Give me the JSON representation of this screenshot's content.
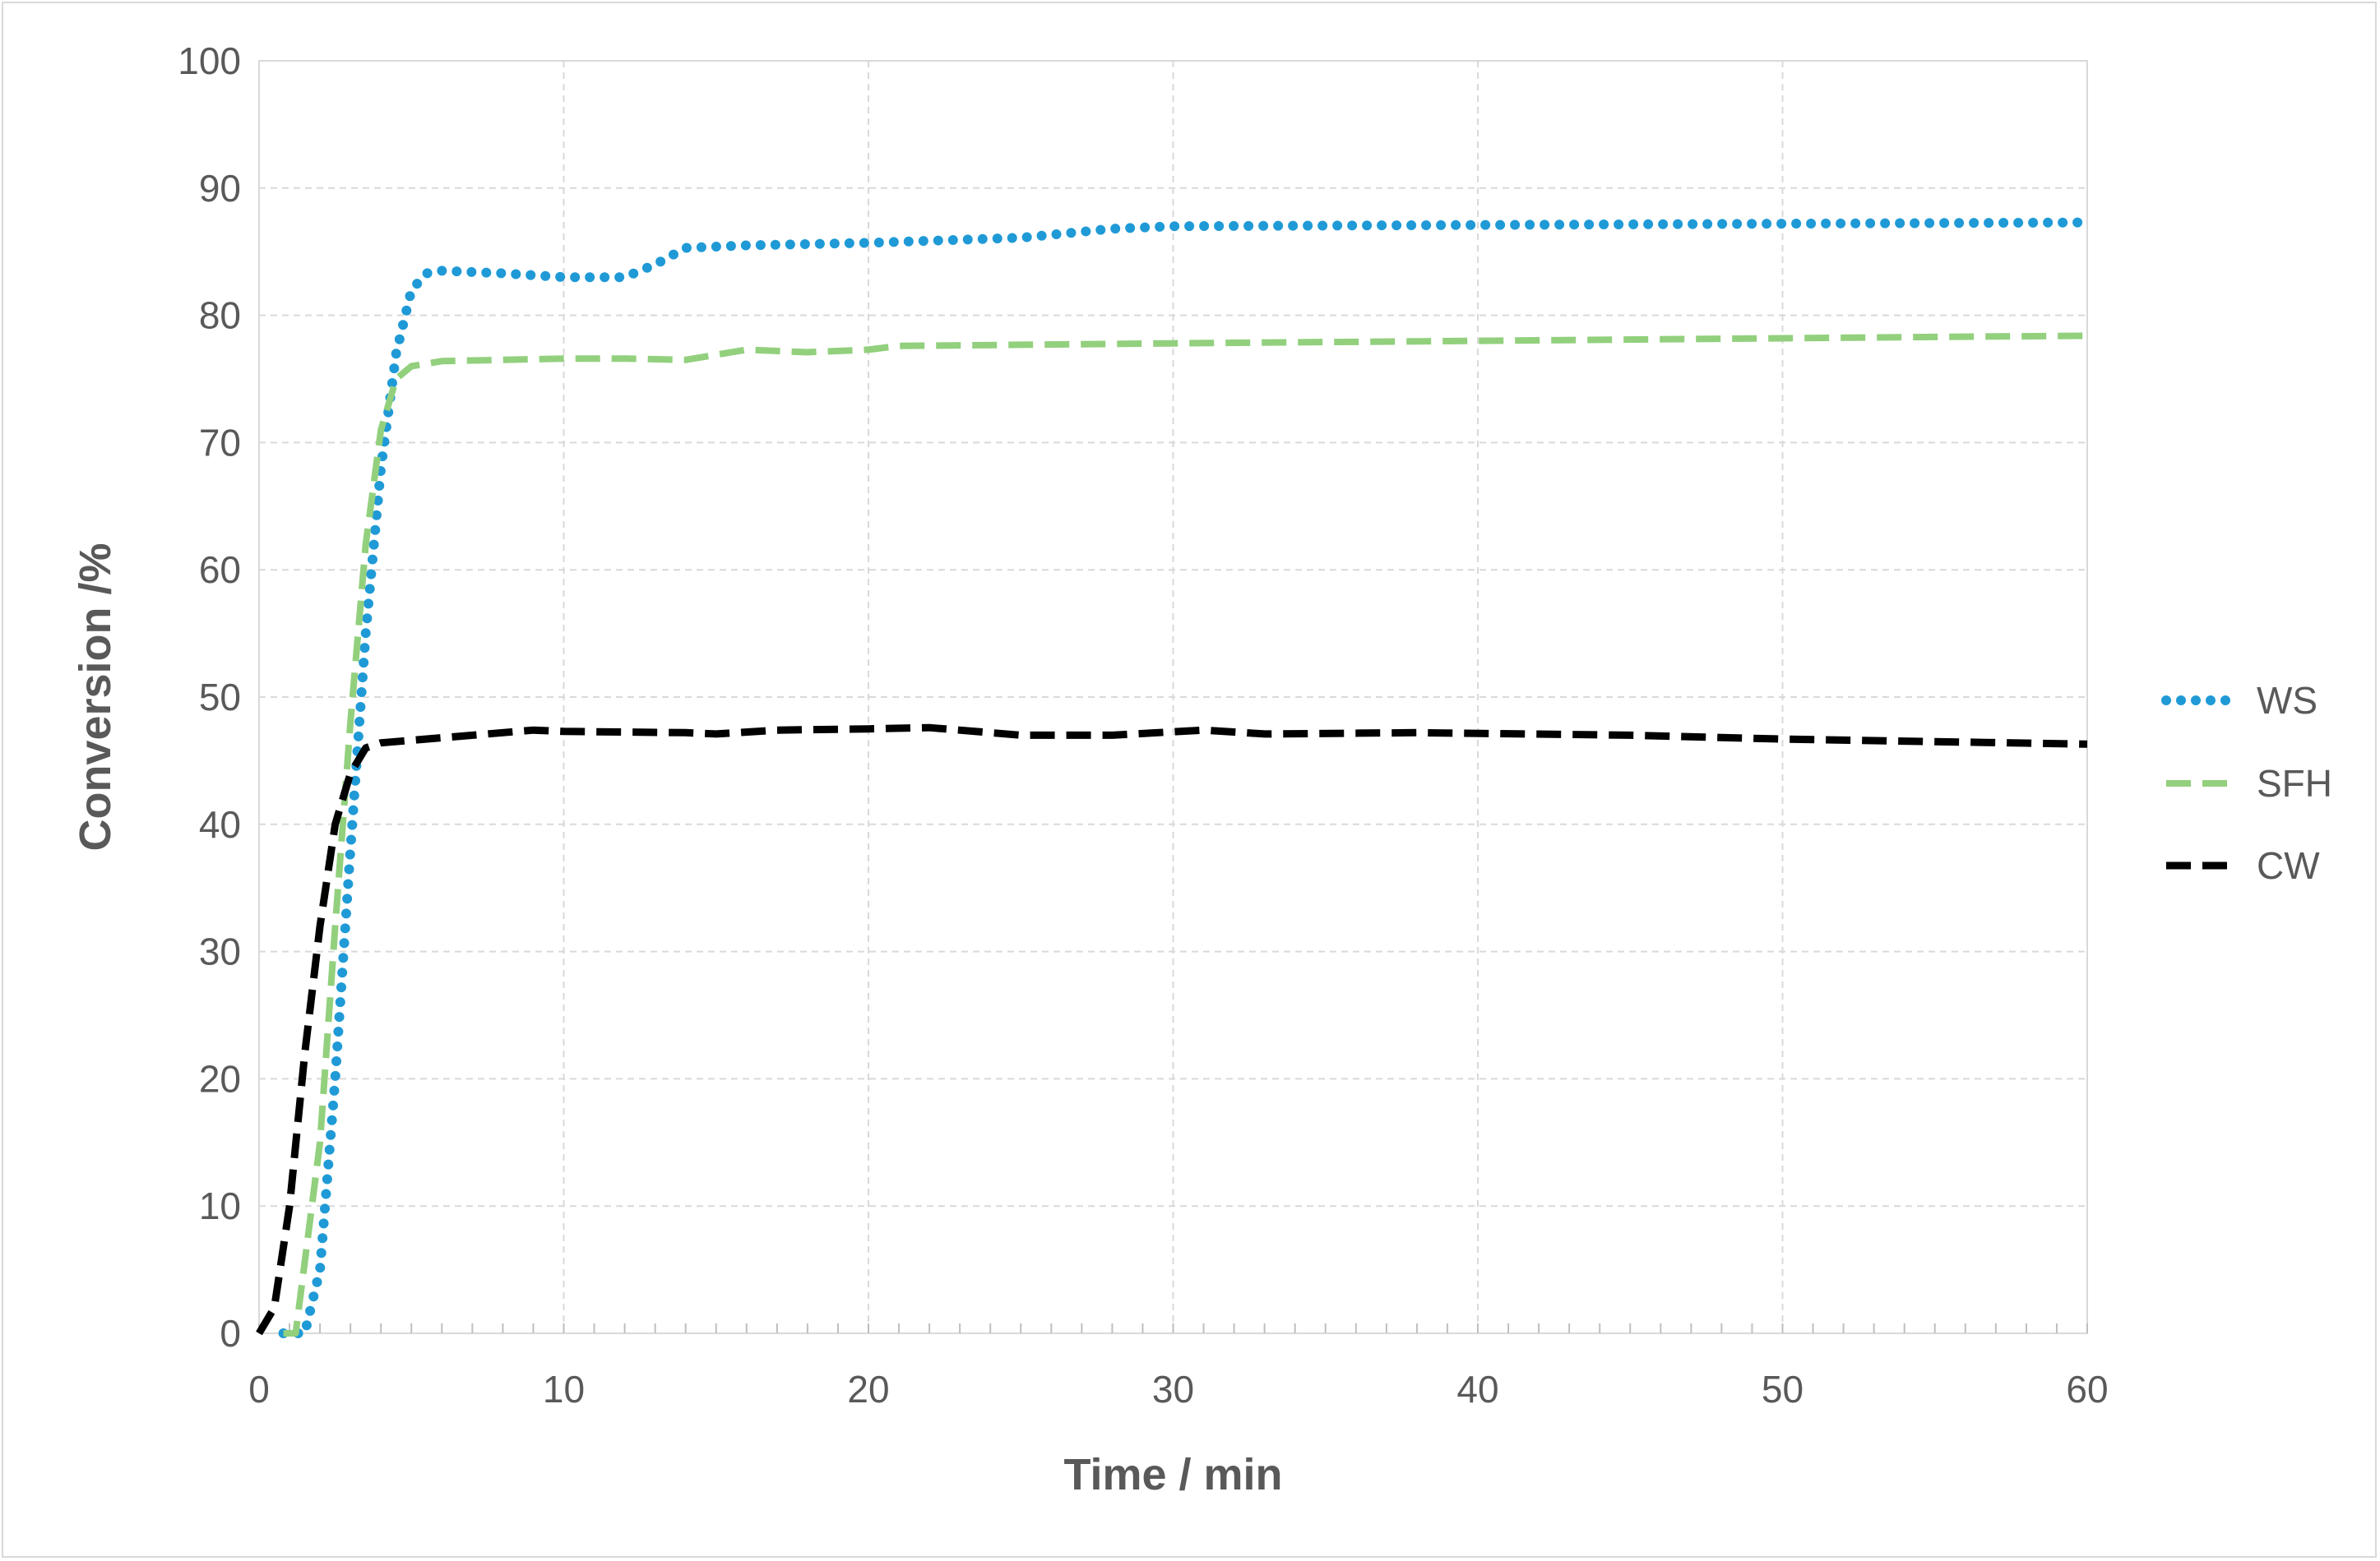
{
  "chart_data": {
    "type": "line",
    "title": "",
    "xlabel": "Time / min",
    "ylabel": "Conversion /%",
    "xlim": [
      0,
      60
    ],
    "ylim": [
      0,
      100
    ],
    "x_ticks": [
      "0",
      "10",
      "20",
      "30",
      "40",
      "50",
      "60"
    ],
    "y_ticks": [
      "0",
      "10",
      "20",
      "30",
      "40",
      "50",
      "60",
      "70",
      "80",
      "90",
      "100"
    ],
    "grid": true,
    "legend_position": "right",
    "series": [
      {
        "name": "WS",
        "color": "#1f9ad6",
        "style": "dotted",
        "points": [
          [
            0.8,
            0
          ],
          [
            1.5,
            0
          ],
          [
            2,
            5
          ],
          [
            2.5,
            20
          ],
          [
            3,
            38
          ],
          [
            3.5,
            55
          ],
          [
            4,
            68
          ],
          [
            4.5,
            77
          ],
          [
            5,
            82
          ],
          [
            5.5,
            83.3
          ],
          [
            6,
            83.5
          ],
          [
            8,
            83.3
          ],
          [
            10,
            83
          ],
          [
            12,
            83
          ],
          [
            13,
            84
          ],
          [
            14,
            85.3
          ],
          [
            16,
            85.5
          ],
          [
            20,
            85.7
          ],
          [
            25,
            86.1
          ],
          [
            28,
            86.8
          ],
          [
            30,
            87
          ],
          [
            40,
            87.1
          ],
          [
            50,
            87.2
          ],
          [
            60,
            87.3
          ]
        ]
      },
      {
        "name": "SFH",
        "color": "#92d07d",
        "style": "dashed",
        "points": [
          [
            0.8,
            0
          ],
          [
            1.2,
            0
          ],
          [
            2,
            15
          ],
          [
            2.5,
            32
          ],
          [
            3,
            48
          ],
          [
            3.5,
            62
          ],
          [
            4,
            71
          ],
          [
            4.5,
            75
          ],
          [
            5,
            76
          ],
          [
            6,
            76.4
          ],
          [
            8,
            76.5
          ],
          [
            10,
            76.6
          ],
          [
            12,
            76.6
          ],
          [
            14,
            76.5
          ],
          [
            16,
            77.3
          ],
          [
            18,
            77.1
          ],
          [
            20,
            77.3
          ],
          [
            21,
            77.6
          ],
          [
            30,
            77.8
          ],
          [
            40,
            78
          ],
          [
            50,
            78.2
          ],
          [
            60,
            78.4
          ]
        ]
      },
      {
        "name": "CW",
        "color": "#000000",
        "style": "dashed",
        "points": [
          [
            0,
            0
          ],
          [
            0.5,
            2
          ],
          [
            1,
            10
          ],
          [
            1.5,
            22
          ],
          [
            2,
            32
          ],
          [
            2.5,
            40
          ],
          [
            3,
            44
          ],
          [
            3.5,
            46
          ],
          [
            4,
            46.4
          ],
          [
            6,
            46.8
          ],
          [
            9,
            47.4
          ],
          [
            10,
            47.3
          ],
          [
            14,
            47.2
          ],
          [
            15,
            47.1
          ],
          [
            17,
            47.4
          ],
          [
            20,
            47.5
          ],
          [
            22,
            47.6
          ],
          [
            25,
            47
          ],
          [
            28,
            47
          ],
          [
            31,
            47.4
          ],
          [
            33,
            47.1
          ],
          [
            38,
            47.2
          ],
          [
            45,
            47
          ],
          [
            50,
            46.7
          ],
          [
            55,
            46.5
          ],
          [
            60,
            46.3
          ]
        ]
      }
    ]
  }
}
